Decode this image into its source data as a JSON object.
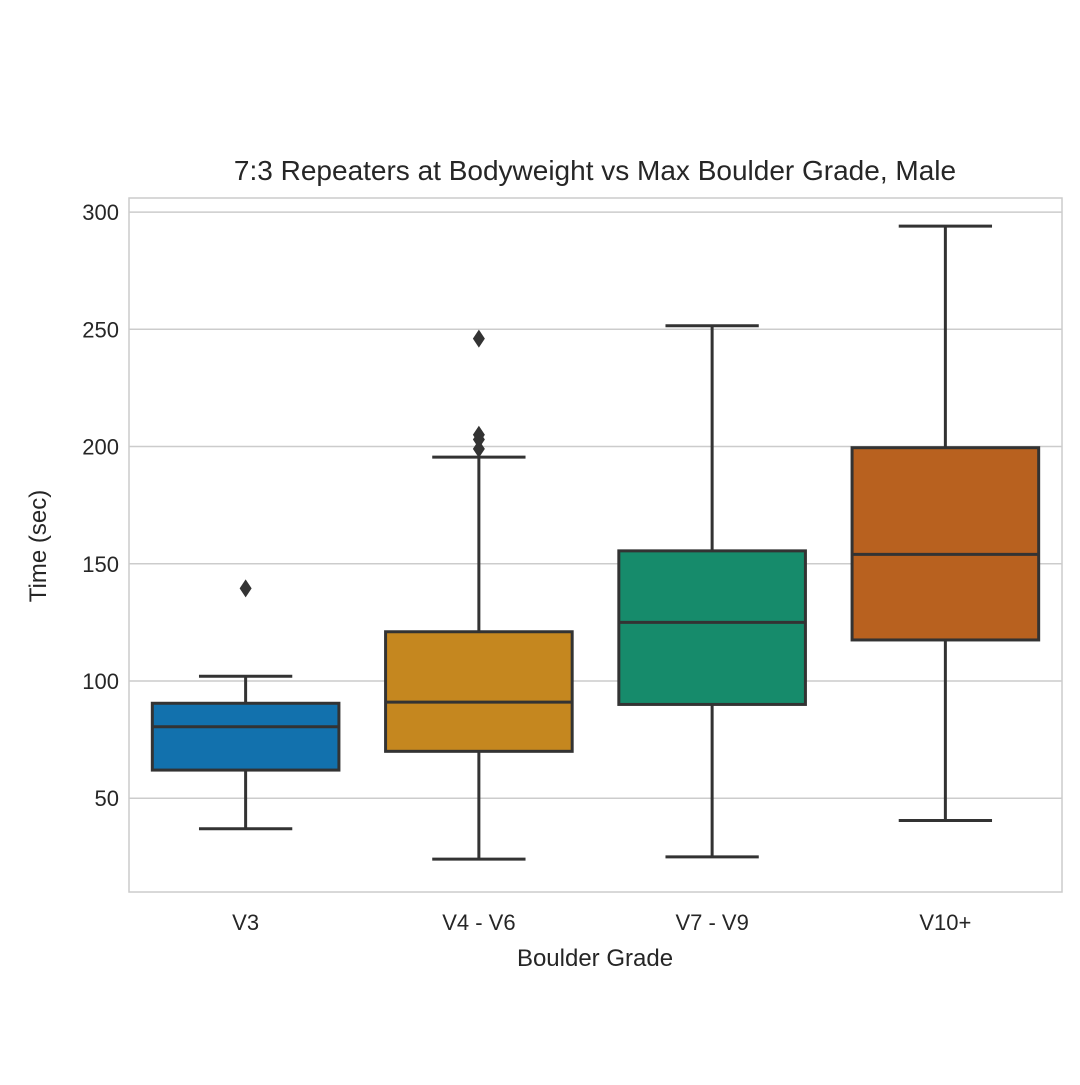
{
  "chart_data": {
    "type": "box",
    "title": "7:3 Repeaters at Bodyweight vs Max Boulder Grade, Male",
    "xlabel": "Boulder Grade",
    "ylabel": "Time (sec)",
    "ylim": [
      10,
      306
    ],
    "y_ticks": [
      50,
      100,
      150,
      200,
      250,
      300
    ],
    "grid": true,
    "categories": [
      "V3",
      "V4 - V6",
      "V7 - V9",
      "V10+"
    ],
    "boxes": [
      {
        "category": "V3",
        "whisker_low": 37,
        "q1": 62,
        "median": 80.5,
        "q3": 90.5,
        "whisker_high": 102,
        "outliers": [
          139.5
        ],
        "color": "#1271ad"
      },
      {
        "category": "V4 - V6",
        "whisker_low": 24,
        "q1": 70,
        "median": 91,
        "q3": 121,
        "whisker_high": 195.5,
        "outliers": [
          199,
          203,
          205,
          246
        ],
        "color": "#c5871f"
      },
      {
        "category": "V7 - V9",
        "whisker_low": 25,
        "q1": 90,
        "median": 125,
        "q3": 155.5,
        "whisker_high": 251.5,
        "outliers": [],
        "color": "#168b6b"
      },
      {
        "category": "V10+",
        "whisker_low": 40.5,
        "q1": 117.5,
        "median": 154,
        "q3": 199.5,
        "whisker_high": 294,
        "outliers": [],
        "color": "#b8611f"
      }
    ]
  }
}
